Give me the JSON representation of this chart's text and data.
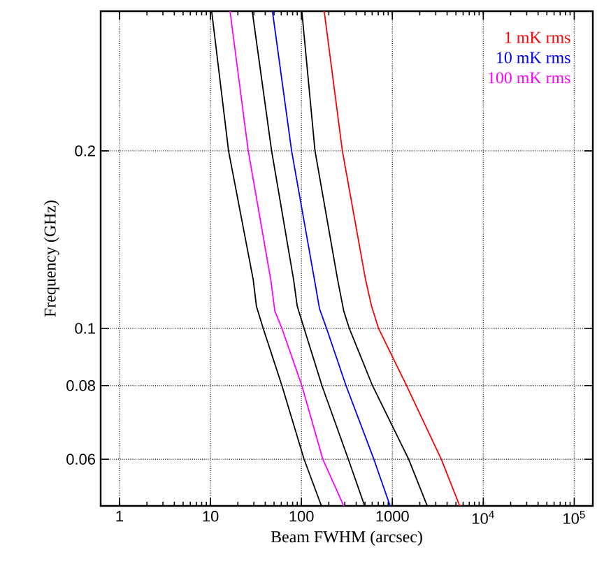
{
  "chart_data": {
    "type": "line",
    "xlabel": "Beam FWHM (arcsec)",
    "ylabel": "Frequency (GHz)",
    "log": "xy",
    "grid": true,
    "legend": "top right",
    "marker": "none",
    "line_style": "solid",
    "xlim": [
      0.62,
      160000
    ],
    "ylim": [
      0.05,
      0.345
    ],
    "xticks": [
      1,
      10,
      100,
      1000,
      {
        "value": 10000,
        "label": "10$^{4}$"
      },
      {
        "value": 100000,
        "label": "10$^{5}$"
      }
    ],
    "yticks": [
      0.06,
      0.08,
      0.1,
      0.2
    ],
    "series": [
      {
        "name": "1 mK rms",
        "color": "#ff0000",
        "x": [
          178,
          282,
          507,
          591,
          705,
          1430,
          3450,
          5510
        ],
        "values": [
          0.345,
          0.2,
          0.121,
          0.109,
          0.1,
          0.08,
          0.06,
          0.05
        ]
      },
      {
        "name": "10 mK rms",
        "color": "#0000ff",
        "x": [
          48,
          78,
          139,
          158,
          189,
          309,
          626,
          945
        ],
        "values": [
          0.345,
          0.2,
          0.121,
          0.108,
          0.1,
          0.08,
          0.06,
          0.05
        ]
      },
      {
        "name": "100 mK rms",
        "color": "#ff00ff",
        "x": [
          16.4,
          26,
          46,
          51,
          61,
          101,
          172,
          292
        ],
        "values": [
          0.345,
          0.2,
          0.121,
          0.107,
          0.1,
          0.08,
          0.06,
          0.05
        ]
      },
      {
        "color": "#000000",
        "x": [
          10.3,
          15.8,
          29.5,
          32,
          38,
          61,
          107,
          166
        ],
        "values": [
          0.345,
          0.2,
          0.121,
          0.109,
          0.1,
          0.08,
          0.06,
          0.05
        ]
      },
      {
        "color": "#000000",
        "x": [
          28.8,
          47,
          82,
          90,
          107,
          168,
          328,
          496
        ],
        "values": [
          0.345,
          0.2,
          0.121,
          0.109,
          0.1,
          0.08,
          0.06,
          0.05
        ]
      },
      {
        "color": "#000000",
        "x": [
          101,
          141,
          250,
          292,
          336,
          604,
          1510,
          2420
        ],
        "values": [
          0.345,
          0.2,
          0.121,
          0.107,
          0.1,
          0.08,
          0.06,
          0.05
        ]
      }
    ]
  }
}
